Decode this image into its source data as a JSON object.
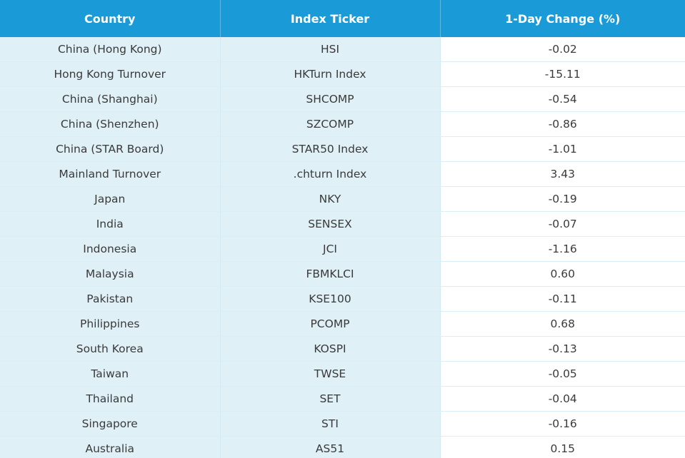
{
  "table": {
    "headers": [
      "Country",
      "Index Ticker",
      "1-Day Change (%)"
    ],
    "rows": [
      [
        "China (Hong Kong)",
        "HSI",
        "-0.02"
      ],
      [
        "Hong Kong Turnover",
        "HKTurn Index",
        "-15.11"
      ],
      [
        "China (Shanghai)",
        "SHCOMP",
        "-0.54"
      ],
      [
        "China (Shenzhen)",
        "SZCOMP",
        "-0.86"
      ],
      [
        "China (STAR Board)",
        "STAR50 Index",
        "-1.01"
      ],
      [
        "Mainland Turnover",
        ".chturn Index",
        "3.43"
      ],
      [
        "Japan",
        "NKY",
        "-0.19"
      ],
      [
        "India",
        "SENSEX",
        "-0.07"
      ],
      [
        "Indonesia",
        "JCI",
        "-1.16"
      ],
      [
        "Malaysia",
        "FBMKLCI",
        "0.60"
      ],
      [
        "Pakistan",
        "KSE100",
        "-0.11"
      ],
      [
        "Philippines",
        "PCOMP",
        "0.68"
      ],
      [
        "South Korea",
        "KOSPI",
        "-0.13"
      ],
      [
        "Taiwan",
        "TWSE",
        "-0.05"
      ],
      [
        "Thailand",
        "SET",
        "-0.04"
      ],
      [
        "Singapore",
        "STI",
        "-0.16"
      ],
      [
        "Australia",
        "AS51",
        "0.15"
      ]
    ]
  },
  "colors": {
    "header_bg": "#1a9ad7",
    "header_text": "#ffffff",
    "shaded_cell_bg": "#dff0f7",
    "body_text": "#3a3a3a"
  }
}
